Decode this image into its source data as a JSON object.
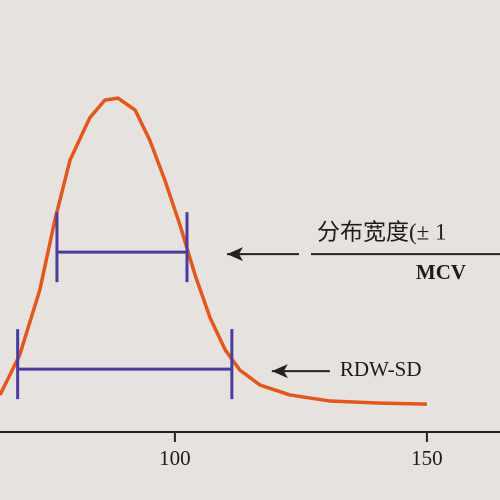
{
  "chart_data": {
    "type": "line",
    "x": [
      65.3,
      69.2,
      73.2,
      76.2,
      79.2,
      83.1,
      86.1,
      88.7,
      92.1,
      95.0,
      98.0,
      101.0,
      104.0,
      107.0,
      110.0,
      112.9,
      116.9,
      122.8,
      130.8,
      140.7,
      150.0
    ],
    "values": [
      10.9,
      22.6,
      41.8,
      62.4,
      80.0,
      92.4,
      97.6,
      98.2,
      94.7,
      85.9,
      74.1,
      60.9,
      46.2,
      33.5,
      24.1,
      18.2,
      13.8,
      10.9,
      9.1,
      8.5,
      8.2
    ],
    "color": "#e2571c",
    "xlim": [
      65.3,
      164.5
    ],
    "ylim": [
      0,
      100
    ],
    "xticks": [
      100,
      150
    ],
    "annotations": [
      {
        "label": "分布宽度(± 1",
        "sublabel": "MCV",
        "range": [
          76.6,
          102.4
        ],
        "level": 52.9
      },
      {
        "label": "RDW-SD",
        "range": [
          68.8,
          111.3
        ],
        "level": 18.5
      }
    ],
    "annotation_color": "#4a3c9e"
  }
}
